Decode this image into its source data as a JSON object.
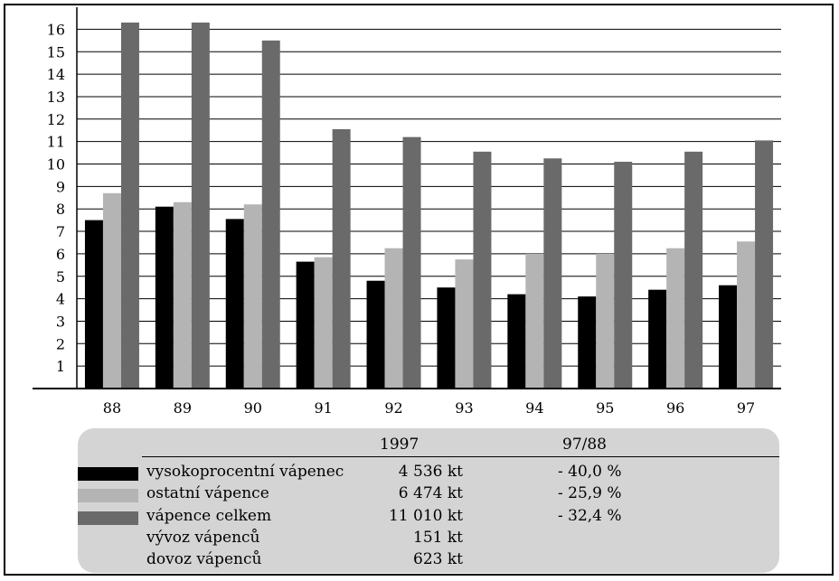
{
  "chart_data": {
    "type": "bar",
    "categories": [
      "88",
      "89",
      "90",
      "91",
      "92",
      "93",
      "94",
      "95",
      "96",
      "97"
    ],
    "series": [
      {
        "name": "vysokoprocentní vápenec",
        "color": "#000000",
        "values": [
          7.5,
          8.1,
          7.55,
          5.65,
          4.8,
          4.5,
          4.2,
          4.1,
          4.4,
          4.6
        ]
      },
      {
        "name": "ostatní vápence",
        "color": "#b4b4b4",
        "values": [
          8.7,
          8.3,
          8.2,
          5.85,
          6.25,
          5.75,
          6.0,
          6.0,
          6.25,
          6.55
        ]
      },
      {
        "name": "vápence celkem",
        "color": "#6a6a6a",
        "values": [
          16.3,
          16.3,
          15.5,
          11.55,
          11.2,
          10.55,
          10.25,
          10.1,
          10.55,
          11.05
        ]
      }
    ],
    "yticks": [
      "1",
      "2",
      "3",
      "4",
      "5",
      "6",
      "7",
      "8",
      "9",
      "10",
      "11",
      "12",
      "13",
      "14",
      "15",
      "16"
    ],
    "ylim": [
      0,
      16.3
    ],
    "grid": true,
    "legend_position": "bottom"
  },
  "legend_table": {
    "col_1997": "1997",
    "col_ratio": "97/88",
    "rows": [
      {
        "label": "vysokoprocentní vápenec",
        "value_1997": "4 536 kt",
        "ratio": "- 40,0 %",
        "swatch": "#000000"
      },
      {
        "label": "ostatní vápence",
        "value_1997": "6 474 kt",
        "ratio": "- 25,9 %",
        "swatch": "#b4b4b4"
      },
      {
        "label": "vápence celkem",
        "value_1997": "11 010 kt",
        "ratio": "- 32,4 %",
        "swatch": "#6a6a6a"
      },
      {
        "label": "vývoz vápenců",
        "value_1997": "151 kt",
        "ratio": ""
      },
      {
        "label": "dovoz vápenců",
        "value_1997": "623 kt",
        "ratio": ""
      }
    ]
  }
}
